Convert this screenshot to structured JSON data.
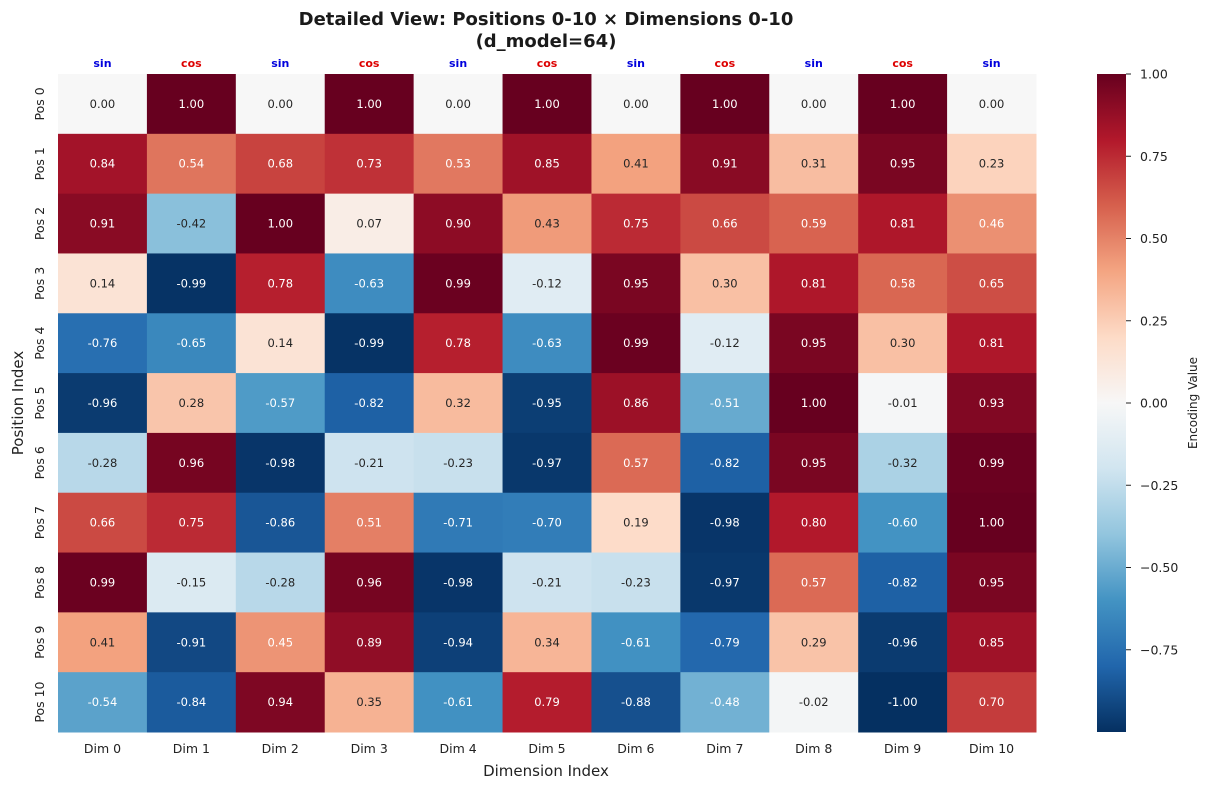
{
  "chart_data": {
    "type": "heatmap",
    "title_lines": [
      "Detailed View: Positions 0-10 × Dimensions 0-10",
      "(d_model=64)"
    ],
    "xlabel": "Dimension Index",
    "ylabel": "Position Index",
    "x_categories": [
      "Dim 0",
      "Dim 1",
      "Dim 2",
      "Dim 3",
      "Dim 4",
      "Dim 5",
      "Dim 6",
      "Dim 7",
      "Dim 8",
      "Dim 9",
      "Dim 10"
    ],
    "y_categories": [
      "Pos 0",
      "Pos 1",
      "Pos 2",
      "Pos 3",
      "Pos 4",
      "Pos 5",
      "Pos 6",
      "Pos 7",
      "Pos 8",
      "Pos 9",
      "Pos 10"
    ],
    "top_labels": [
      "sin",
      "cos",
      "sin",
      "cos",
      "sin",
      "cos",
      "sin",
      "cos",
      "sin",
      "cos",
      "sin"
    ],
    "top_label_colors": {
      "sin": "#0000dd",
      "cos": "#dd0000"
    },
    "values": [
      [
        0.0,
        1.0,
        0.0,
        1.0,
        0.0,
        1.0,
        0.0,
        1.0,
        0.0,
        1.0,
        0.0
      ],
      [
        0.84,
        0.54,
        0.68,
        0.73,
        0.53,
        0.85,
        0.41,
        0.91,
        0.31,
        0.95,
        0.23
      ],
      [
        0.91,
        -0.42,
        1.0,
        0.07,
        0.9,
        0.43,
        0.75,
        0.66,
        0.59,
        0.81,
        0.46
      ],
      [
        0.14,
        -0.99,
        0.78,
        -0.63,
        0.99,
        -0.12,
        0.95,
        0.3,
        0.81,
        0.58,
        0.65
      ],
      [
        -0.76,
        -0.65,
        0.14,
        -0.99,
        0.78,
        -0.63,
        0.99,
        -0.12,
        0.95,
        0.3,
        0.81
      ],
      [
        -0.96,
        0.28,
        -0.57,
        -0.82,
        0.32,
        -0.95,
        0.86,
        -0.51,
        1.0,
        -0.01,
        0.93
      ],
      [
        -0.28,
        0.96,
        -0.98,
        -0.21,
        -0.23,
        -0.97,
        0.57,
        -0.82,
        0.95,
        -0.32,
        0.99
      ],
      [
        0.66,
        0.75,
        -0.86,
        0.51,
        -0.71,
        -0.7,
        0.19,
        -0.98,
        0.8,
        -0.6,
        1.0
      ],
      [
        0.99,
        -0.15,
        -0.28,
        0.96,
        -0.98,
        -0.21,
        -0.23,
        -0.97,
        0.57,
        -0.82,
        0.95
      ],
      [
        0.41,
        -0.91,
        0.45,
        0.89,
        -0.94,
        0.34,
        -0.61,
        -0.79,
        0.29,
        -0.96,
        0.85
      ],
      [
        -0.54,
        -0.84,
        0.94,
        0.35,
        -0.61,
        0.79,
        -0.88,
        -0.48,
        -0.02,
        -1.0,
        0.7
      ]
    ],
    "colormap": "RdBu_r",
    "vmin": -1.0,
    "vmax": 1.0,
    "colorbar": {
      "label": "Encoding Value",
      "ticks": [
        1.0,
        0.75,
        0.5,
        0.25,
        0.0,
        -0.25,
        -0.5,
        -0.75
      ],
      "tick_labels": [
        "1.00",
        "0.75",
        "0.50",
        "0.25",
        "0.00",
        "−0.25",
        "−0.50",
        "−0.75"
      ]
    }
  }
}
